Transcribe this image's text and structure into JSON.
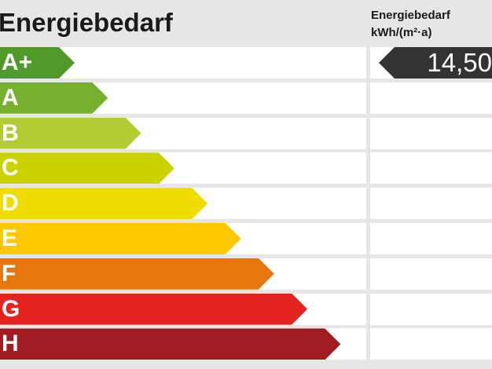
{
  "title": "Energiebedarf",
  "value_header": {
    "line1": "Energiebedarf",
    "line2": "kWh/(m²·a)"
  },
  "value": "14,50",
  "value_class_index": 0,
  "classes": [
    {
      "label": "A+",
      "color": "#4f9a2b"
    },
    {
      "label": "A",
      "color": "#76b02e"
    },
    {
      "label": "B",
      "color": "#b4cc33"
    },
    {
      "label": "C",
      "color": "#cad300"
    },
    {
      "label": "D",
      "color": "#f0dc00"
    },
    {
      "label": "E",
      "color": "#fcc800"
    },
    {
      "label": "F",
      "color": "#e8760e"
    },
    {
      "label": "G",
      "color": "#e2231f"
    },
    {
      "label": "H",
      "color": "#a11b22"
    }
  ]
}
